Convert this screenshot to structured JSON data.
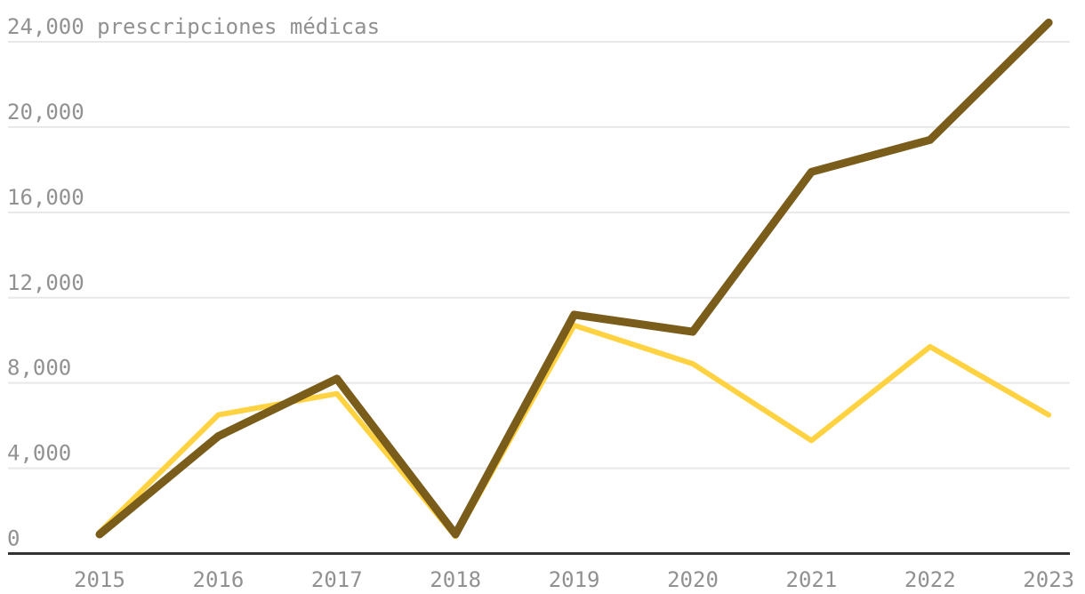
{
  "chart_data": {
    "type": "line",
    "title": "",
    "top_label": "24,000 prescripciones médicas",
    "ylabel": "prescripciones médicas",
    "xlabel": "",
    "x": [
      2015,
      2016,
      2017,
      2018,
      2019,
      2020,
      2021,
      2022,
      2023
    ],
    "x_tick_labels": [
      "2015",
      "2016",
      "2017",
      "2018",
      "2019",
      "2020",
      "2021",
      "2022",
      "2023"
    ],
    "y_ticks": [
      0,
      4000,
      8000,
      12000,
      16000,
      20000,
      24000
    ],
    "y_tick_labels": [
      "0",
      "4,000",
      "8,000",
      "12,000",
      "16,000",
      "20,000",
      "24,000"
    ],
    "ylim": [
      0,
      24000
    ],
    "grid": true,
    "legend": "none",
    "series": [
      {
        "name": "brown-line",
        "color": "#7a5c1b",
        "stroke_width": 9,
        "values": [
          900,
          5500,
          8200,
          900,
          11200,
          10400,
          17900,
          19400,
          24900
        ]
      },
      {
        "name": "yellow-line",
        "color": "#ffd242",
        "stroke_width": 6,
        "values": [
          1000,
          6500,
          7500,
          800,
          10700,
          8900,
          5300,
          9700,
          6500
        ]
      }
    ],
    "colors": {
      "grid": "#e8e8e8",
      "axis": "#333333",
      "text": "#919191",
      "background": "#ffffff"
    }
  }
}
